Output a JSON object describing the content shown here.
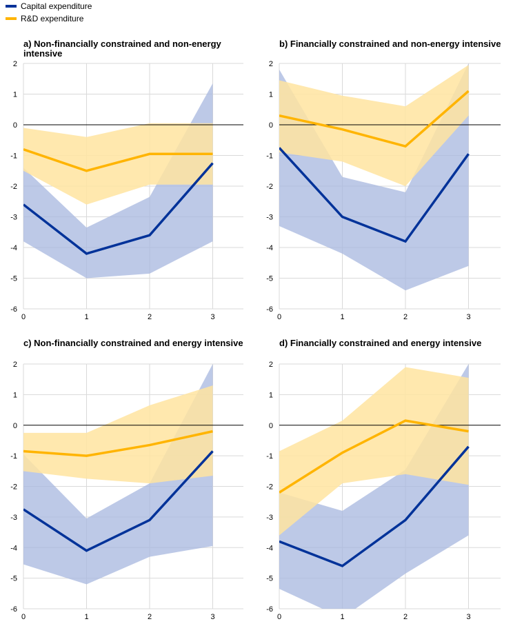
{
  "legend": {
    "items": [
      {
        "label": "Capital expenditure",
        "color": "#003299"
      },
      {
        "label": "R&D expenditure",
        "color": "#FFB400"
      }
    ]
  },
  "colors": {
    "capex_line": "#003299",
    "capex_band": "#a7b7df",
    "rd_line": "#FFB400",
    "rd_band": "#ffe4a0",
    "grid": "#d9d9d9",
    "zero_line": "#000000"
  },
  "chart_data": [
    {
      "type": "line",
      "title": "a) Non-financially constrained and non-energy intensive",
      "x": [
        0,
        1,
        2,
        3
      ],
      "ylim": [
        -6,
        2
      ],
      "yticks": [
        2,
        1,
        0,
        -1,
        -2,
        -3,
        -4,
        -5,
        -6
      ],
      "grid": true,
      "series": [
        {
          "name": "Capital expenditure",
          "values": [
            -2.6,
            -4.2,
            -3.6,
            -1.25
          ],
          "lower": [
            -3.8,
            -5.0,
            -4.85,
            -3.8
          ],
          "upper": [
            -1.4,
            -3.35,
            -2.35,
            1.35
          ]
        },
        {
          "name": "R&D expenditure",
          "values": [
            -0.8,
            -1.5,
            -0.95,
            -0.95
          ],
          "lower": [
            -1.5,
            -2.6,
            -1.95,
            -1.95
          ],
          "upper": [
            -0.1,
            -0.4,
            0.05,
            0.05
          ]
        }
      ]
    },
    {
      "type": "line",
      "title": "b) Financially constrained and non-energy intensive",
      "x": [
        0,
        1,
        2,
        3
      ],
      "ylim": [
        -6,
        2
      ],
      "yticks": [
        2,
        1,
        0,
        -1,
        -2,
        -3,
        -4,
        -5,
        -6
      ],
      "grid": true,
      "series": [
        {
          "name": "Capital expenditure",
          "values": [
            -0.75,
            -3.0,
            -3.8,
            -0.95
          ],
          "lower": [
            -3.3,
            -4.2,
            -5.4,
            -4.6
          ],
          "upper": [
            1.8,
            -1.7,
            -2.2,
            2.0
          ]
        },
        {
          "name": "R&D expenditure",
          "values": [
            0.3,
            -0.15,
            -0.7,
            1.1
          ],
          "lower": [
            -0.9,
            -1.2,
            -2.0,
            0.3
          ],
          "upper": [
            1.45,
            0.95,
            0.6,
            1.95
          ]
        }
      ]
    },
    {
      "type": "line",
      "title": "c) Non-financially constrained and energy intensive",
      "x": [
        0,
        1,
        2,
        3
      ],
      "ylim": [
        -6,
        2
      ],
      "yticks": [
        2,
        1,
        0,
        -1,
        -2,
        -3,
        -4,
        -5,
        -6
      ],
      "grid": true,
      "series": [
        {
          "name": "Capital expenditure",
          "values": [
            -2.75,
            -4.1,
            -3.1,
            -0.85
          ],
          "lower": [
            -4.55,
            -5.2,
            -4.3,
            -3.95
          ],
          "upper": [
            -0.95,
            -3.05,
            -1.9,
            2.0
          ]
        },
        {
          "name": "R&D expenditure",
          "values": [
            -0.85,
            -1.0,
            -0.65,
            -0.2
          ],
          "lower": [
            -1.5,
            -1.75,
            -1.9,
            -1.65
          ],
          "upper": [
            -0.25,
            -0.25,
            0.65,
            1.3
          ]
        }
      ]
    },
    {
      "type": "line",
      "title": "d) Financially constrained and energy intensive",
      "x": [
        0,
        1,
        2,
        3
      ],
      "ylim": [
        -6,
        2
      ],
      "yticks": [
        2,
        1,
        0,
        -1,
        -2,
        -3,
        -4,
        -5,
        -6
      ],
      "grid": true,
      "series": [
        {
          "name": "Capital expenditure",
          "values": [
            -3.8,
            -4.6,
            -3.1,
            -0.7
          ],
          "lower": [
            -5.35,
            -6.3,
            -4.85,
            -3.6
          ],
          "upper": [
            -2.2,
            -2.8,
            -1.45,
            2.0
          ]
        },
        {
          "name": "R&D expenditure",
          "values": [
            -2.2,
            -0.9,
            0.15,
            -0.2
          ],
          "lower": [
            -3.6,
            -1.9,
            -1.6,
            -1.95
          ],
          "upper": [
            -0.85,
            0.15,
            1.9,
            1.55
          ]
        }
      ]
    }
  ]
}
